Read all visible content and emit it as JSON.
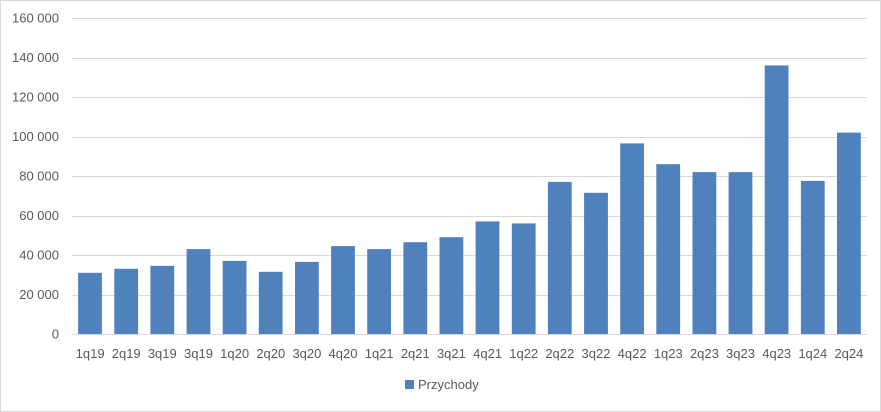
{
  "chart_data": {
    "type": "bar",
    "title": "",
    "xlabel": "",
    "ylabel": "",
    "ylim": [
      0,
      160000
    ],
    "yticks": [
      "0",
      "20 000",
      "40 000",
      "60 000",
      "80 000",
      "100 000",
      "120 000",
      "140 000",
      "160 000"
    ],
    "ytick_values": [
      0,
      20000,
      40000,
      60000,
      80000,
      100000,
      120000,
      140000,
      160000
    ],
    "categories": [
      "1q19",
      "2q19",
      "3q19",
      "3q19",
      "1q20",
      "2q20",
      "3q20",
      "4q20",
      "1q21",
      "2q21",
      "3q21",
      "4q21",
      "1q22",
      "2q22",
      "3q22",
      "4q22",
      "1q23",
      "2q23",
      "3q23",
      "4q23",
      "1q24",
      "2q24"
    ],
    "series": [
      {
        "name": "Przychody",
        "color": "#4f81bd",
        "values": [
          31000,
          33000,
          34500,
          43000,
          37000,
          31500,
          36500,
          44500,
          43000,
          46500,
          49000,
          57000,
          56000,
          77000,
          71500,
          96500,
          86000,
          82000,
          82000,
          136000,
          77500,
          102000
        ]
      }
    ],
    "grid": true,
    "legend_position": "bottom"
  }
}
